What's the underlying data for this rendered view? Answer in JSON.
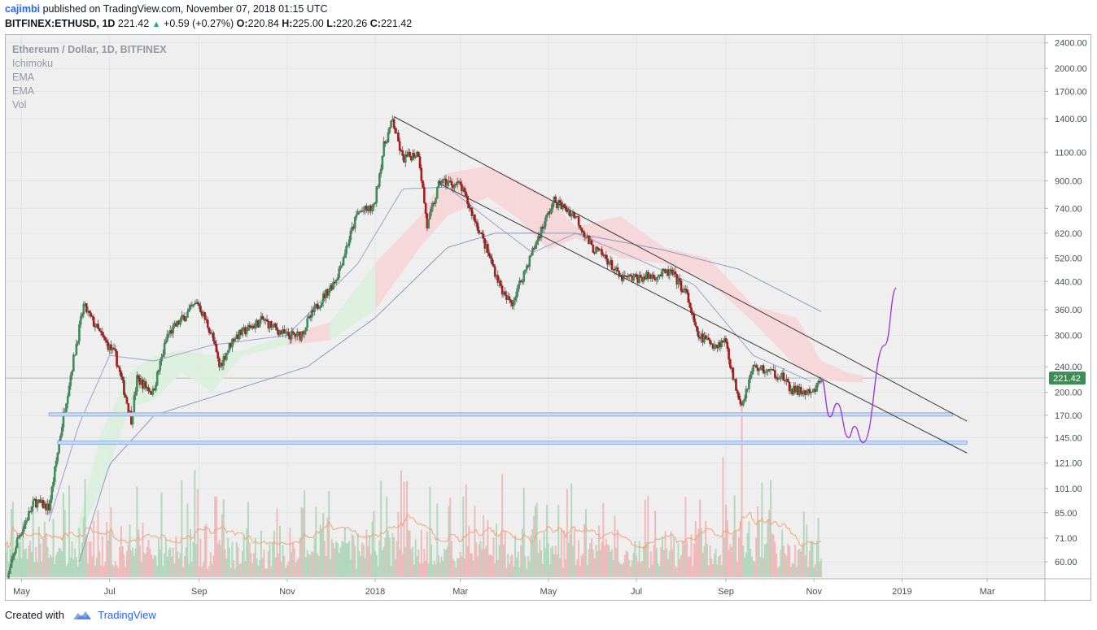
{
  "header": {
    "user": "cajimbi",
    "published_text": "published on TradingView.com, November 07, 2018 01:15 UTC",
    "symbol": "BITFINEX:ETHUSD, 1D",
    "last": "221.42",
    "change_arrow": "▲",
    "change": "+0.59 (+0.27%)",
    "o_label": "O:",
    "o": "220.84",
    "h_label": "H:",
    "h": "225.00",
    "l_label": "L:",
    "l": "220.26",
    "c_label": "C:",
    "c": "221.42"
  },
  "legend": {
    "title": "Ethereum / Dollar, 1D, BITFINEX",
    "indicators": [
      "Ichimoku",
      "EMA",
      "EMA",
      "Vol"
    ]
  },
  "footer": {
    "created_with": "Created with",
    "brand": "TradingView"
  },
  "colors": {
    "up": "#3d8e56",
    "down": "#a61b1b",
    "cloud_up": "#dbeedd",
    "cloud_down": "#f6d6d8",
    "support": "#8fb0e8",
    "projection": "#9b30e0",
    "ema_fast": "#9aa1cc",
    "ema_slow": "#8f96c3",
    "vol_ma": "#f2a377",
    "price_label": "#3d8e56"
  },
  "chart_data": {
    "type": "candlestick",
    "title": "Ethereum / Dollar, 1D, BITFINEX",
    "scale": "log",
    "ylim": [
      56,
      2480
    ],
    "y_ticks": [
      "2400.00",
      "2000.00",
      "1700.00",
      "1400.00",
      "1100.00",
      "900.00",
      "740.00",
      "620.00",
      "520.00",
      "440.00",
      "360.00",
      "300.00",
      "240.00",
      "200.00",
      "170.00",
      "145.00",
      "121.00",
      "101.00",
      "85.00",
      "71.00",
      "60.00"
    ],
    "x_ticks": [
      "May",
      "Jul",
      "Sep",
      "Nov",
      "2018",
      "Mar",
      "May",
      "Jul",
      "Sep",
      "Nov",
      "2019",
      "Mar"
    ],
    "x_tick_dates": [
      "2017-05-01",
      "2017-07-01",
      "2017-09-01",
      "2017-11-01",
      "2018-01-01",
      "2018-03-01",
      "2018-05-01",
      "2018-07-01",
      "2018-09-01",
      "2018-11-01",
      "2019-01-01",
      "2019-03-01"
    ],
    "date_range": [
      "2017-04-20",
      "2019-04-10"
    ],
    "current_price": "221.42",
    "price_anchors": [
      [
        "2017-04-20",
        50
      ],
      [
        "2017-04-28",
        70
      ],
      [
        "2017-05-10",
        92
      ],
      [
        "2017-05-20",
        88
      ],
      [
        "2017-05-30",
        170
      ],
      [
        "2017-06-05",
        240
      ],
      [
        "2017-06-13",
        370
      ],
      [
        "2017-06-25",
        300
      ],
      [
        "2017-07-05",
        260
      ],
      [
        "2017-07-16",
        165
      ],
      [
        "2017-07-20",
        220
      ],
      [
        "2017-07-31",
        200
      ],
      [
        "2017-08-10",
        300
      ],
      [
        "2017-08-31",
        380
      ],
      [
        "2017-09-10",
        300
      ],
      [
        "2017-09-15",
        240
      ],
      [
        "2017-09-25",
        295
      ],
      [
        "2017-10-15",
        335
      ],
      [
        "2017-10-31",
        300
      ],
      [
        "2017-11-10",
        300
      ],
      [
        "2017-11-20",
        360
      ],
      [
        "2017-12-05",
        450
      ],
      [
        "2017-12-20",
        720
      ],
      [
        "2017-12-31",
        740
      ],
      [
        "2018-01-07",
        1150
      ],
      [
        "2018-01-13",
        1380
      ],
      [
        "2018-01-20",
        1050
      ],
      [
        "2018-01-31",
        1100
      ],
      [
        "2018-02-06",
        650
      ],
      [
        "2018-02-15",
        900
      ],
      [
        "2018-03-01",
        870
      ],
      [
        "2018-03-15",
        620
      ],
      [
        "2018-04-01",
        390
      ],
      [
        "2018-04-06",
        380
      ],
      [
        "2018-04-25",
        620
      ],
      [
        "2018-05-05",
        780
      ],
      [
        "2018-05-20",
        700
      ],
      [
        "2018-05-31",
        560
      ],
      [
        "2018-06-10",
        520
      ],
      [
        "2018-06-20",
        450
      ],
      [
        "2018-07-01",
        450
      ],
      [
        "2018-07-15",
        460
      ],
      [
        "2018-07-25",
        470
      ],
      [
        "2018-08-05",
        400
      ],
      [
        "2018-08-12",
        300
      ],
      [
        "2018-08-25",
        280
      ],
      [
        "2018-09-01",
        290
      ],
      [
        "2018-09-06",
        220
      ],
      [
        "2018-09-12",
        185
      ],
      [
        "2018-09-20",
        240
      ],
      [
        "2018-10-10",
        225
      ],
      [
        "2018-10-15",
        205
      ],
      [
        "2018-10-31",
        197
      ],
      [
        "2018-11-06",
        221
      ]
    ],
    "ema_fast_anchors": [
      [
        "2017-05-20",
        80
      ],
      [
        "2017-06-10",
        160
      ],
      [
        "2017-07-01",
        260
      ],
      [
        "2017-08-01",
        250
      ],
      [
        "2017-09-10",
        280
      ],
      [
        "2017-11-01",
        300
      ],
      [
        "2017-12-20",
        500
      ],
      [
        "2018-01-20",
        850
      ],
      [
        "2018-02-20",
        860
      ],
      [
        "2018-03-25",
        660
      ],
      [
        "2018-04-20",
        540
      ],
      [
        "2018-05-20",
        620
      ],
      [
        "2018-06-30",
        520
      ],
      [
        "2018-08-10",
        430
      ],
      [
        "2018-09-20",
        260
      ],
      [
        "2018-10-31",
        215
      ]
    ],
    "ema_slow_anchors": [
      [
        "2017-06-10",
        60
      ],
      [
        "2017-07-01",
        120
      ],
      [
        "2017-08-01",
        170
      ],
      [
        "2017-09-20",
        200
      ],
      [
        "2017-11-15",
        240
      ],
      [
        "2018-01-01",
        340
      ],
      [
        "2018-02-20",
        560
      ],
      [
        "2018-03-25",
        620
      ],
      [
        "2018-05-20",
        620
      ],
      [
        "2018-07-20",
        550
      ],
      [
        "2018-09-10",
        480
      ],
      [
        "2018-11-06",
        355
      ]
    ],
    "cloud_anchors": [
      [
        "2017-06-01",
        55,
        58
      ],
      [
        "2017-06-25",
        150,
        100
      ],
      [
        "2017-07-15",
        230,
        180
      ],
      [
        "2017-08-01",
        260,
        190
      ],
      [
        "2017-08-20",
        270,
        230
      ],
      [
        "2017-09-10",
        260,
        200
      ],
      [
        "2017-10-01",
        270,
        260
      ],
      [
        "2017-11-01",
        300,
        280
      ],
      [
        "2017-12-01",
        330,
        290
      ],
      [
        "2018-01-01",
        500,
        360
      ],
      [
        "2018-02-01",
        700,
        560
      ],
      [
        "2018-02-20",
        950,
        700
      ],
      [
        "2018-03-20",
        1000,
        800
      ],
      [
        "2018-04-10",
        900,
        690
      ],
      [
        "2018-05-01",
        800,
        550
      ],
      [
        "2018-05-20",
        650,
        600
      ],
      [
        "2018-06-20",
        700,
        520
      ],
      [
        "2018-07-20",
        560,
        500
      ],
      [
        "2018-08-20",
        520,
        440
      ],
      [
        "2018-09-20",
        370,
        330
      ],
      [
        "2018-10-20",
        340,
        240
      ],
      [
        "2018-11-06",
        250,
        220
      ],
      [
        "2018-11-25",
        230,
        215
      ],
      [
        "2018-12-05",
        225,
        215
      ]
    ],
    "trendlines": [
      {
        "name": "upper",
        "from": [
          "2018-01-14",
          1420
        ],
        "to": [
          "2019-02-15",
          163
        ]
      },
      {
        "name": "lower",
        "from": [
          "2018-02-15",
          880
        ],
        "to": [
          "2019-02-15",
          130
        ]
      }
    ],
    "support_levels": [
      {
        "name": "support-170",
        "price": 171,
        "from": "2017-05-20",
        "to": "2019-02-05"
      },
      {
        "name": "support-140",
        "price": 140,
        "from": "2017-05-26",
        "to": "2019-02-15"
      }
    ],
    "projection_path": [
      [
        "2018-11-06",
        221
      ],
      [
        "2018-11-12",
        168
      ],
      [
        "2018-11-17",
        185
      ],
      [
        "2018-11-25",
        145
      ],
      [
        "2018-11-29",
        157
      ],
      [
        "2018-12-05",
        140
      ],
      [
        "2018-12-20",
        280
      ],
      [
        "2018-12-28",
        420
      ]
    ],
    "volume_note": "Volume histogram with moving average drawn in lower pane"
  }
}
